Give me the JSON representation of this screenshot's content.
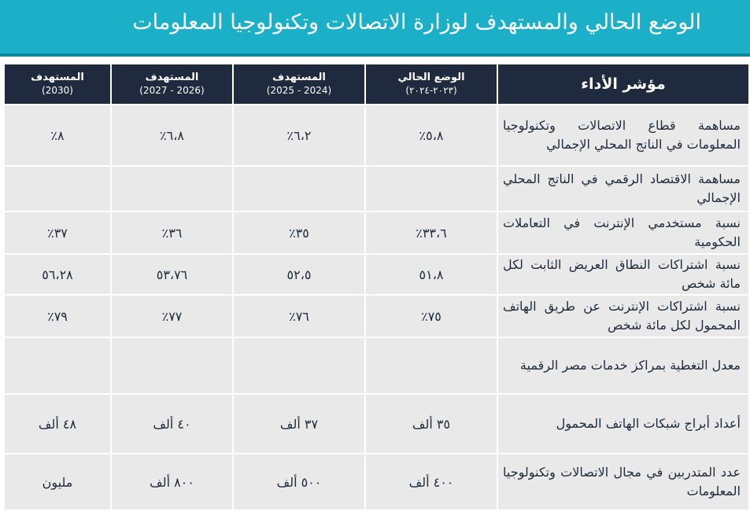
{
  "title": "الوضع الحالي والمستهدف لوزارة الاتصالات وتكنولوجيا المعلومات",
  "table": {
    "indicator_header": "مؤشر الأداء",
    "columns": [
      {
        "label": "الوضع الحالي",
        "sub": "(٢٠٢٣-٢٠٢٤)"
      },
      {
        "label": "المستهدف",
        "sub": "(2024 - 2025)"
      },
      {
        "label": "المستهدف",
        "sub": "(2026 - 2027)"
      },
      {
        "label": "المستهدف",
        "sub": "(2030)"
      }
    ],
    "rows": [
      {
        "indicator": "مساهمة قطاع الاتصالات وتكنولوجيا المعلومات في الناتج المحلي الإجمالي",
        "values": [
          "٥،٨٪",
          "٦،٢٪",
          "٦،٨٪",
          "٨٪"
        ]
      },
      {
        "indicator": "مساهمة الاقتصاد الرقمي في الناتج المحلي الإجمالي",
        "values": [
          "",
          "",
          "",
          ""
        ]
      },
      {
        "indicator": "نسبة مستخدمي الإنترنت في التعاملات الحكومية",
        "values": [
          "٣٣،٦٪",
          "٣٥٪",
          "٣٦٪",
          "٣٧٪"
        ]
      },
      {
        "indicator": "نسبة اشتراكات النطاق العريض الثابت لكل مائة شخص",
        "values": [
          "٥١،٨",
          "٥٢،٥",
          "٥٣،٧٦",
          "٥٦،٢٨"
        ]
      },
      {
        "indicator": "نسبة اشتراكات الإنترنت عن طريق الهاتف المحمول لكل مائة شخص",
        "values": [
          "٧٥٪",
          "٧٦٪",
          "٧٧٪",
          "٧٩٪"
        ]
      },
      {
        "indicator": "معدل التغطية بمراكز خدمات مصر الرقمية",
        "values": [
          "",
          "",
          "",
          ""
        ]
      },
      {
        "indicator": "أعداد أبراج شبكات الهاتف المحمول",
        "values": [
          "٣٥ ألف",
          "٣٧ ألف",
          "٤٠ ألف",
          "٤٨ ألف"
        ]
      },
      {
        "indicator": "عدد المتدربين في مجال الاتصالات وتكنولوجيا المعلومات",
        "values": [
          "٤٠٠ ألف",
          "٥٠٠ ألف",
          "٨٠٠ ألف",
          "مليون"
        ]
      }
    ]
  }
}
